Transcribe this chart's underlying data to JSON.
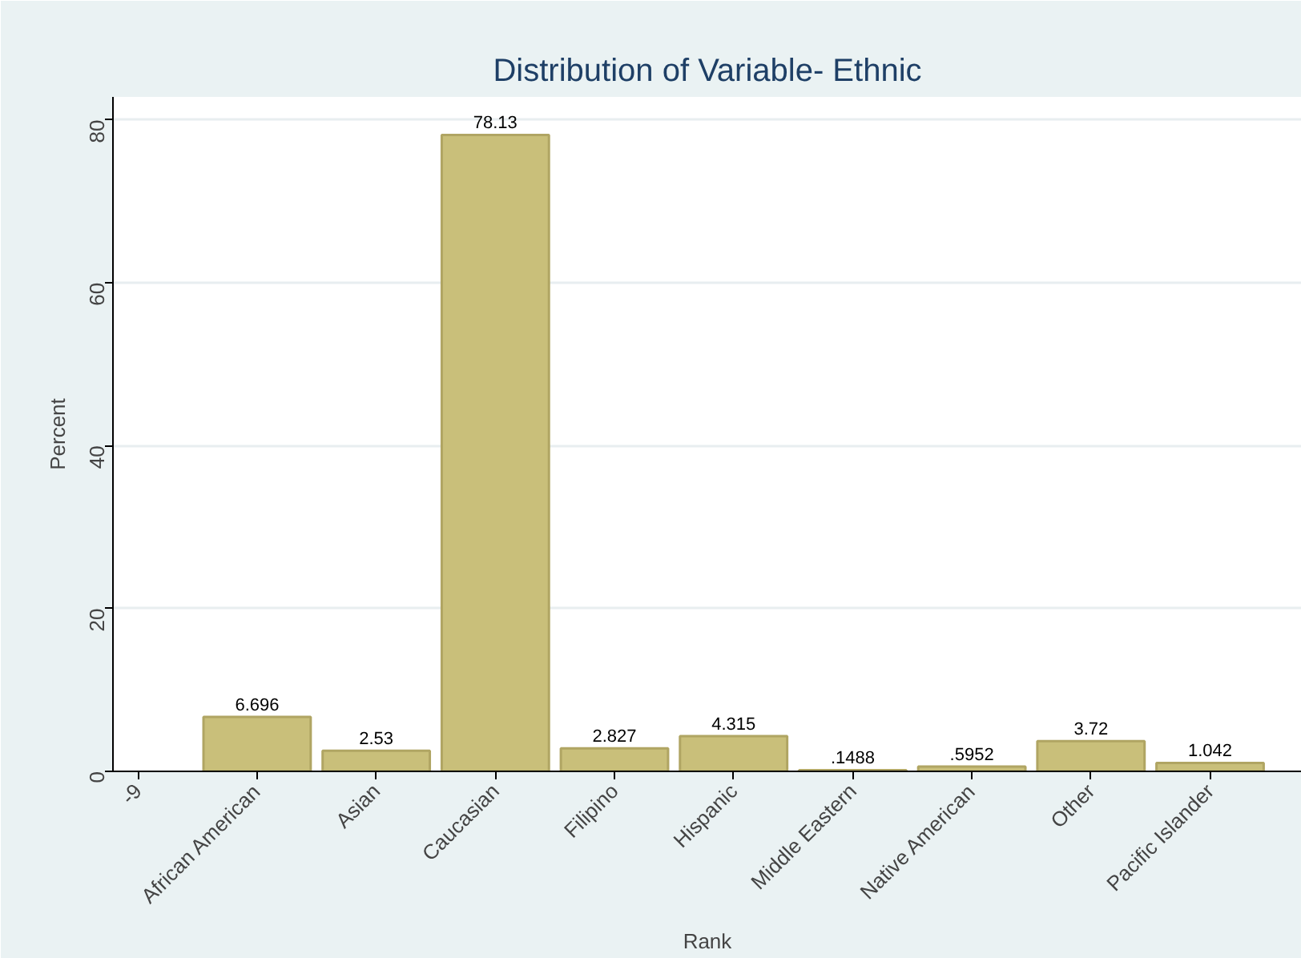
{
  "chart_data": {
    "type": "bar",
    "title": "Distribution of Variable- Ethnic",
    "xlabel": "Rank",
    "ylabel": "Percent",
    "categories": [
      "-9",
      "African American",
      "Asian",
      "Caucasian",
      "Filipino",
      "Hispanic",
      "Middle Eastern",
      "Native American",
      "Other",
      "Pacific Islander"
    ],
    "values": [
      null,
      6.696,
      2.53,
      78.13,
      2.827,
      4.315,
      0.1488,
      0.5952,
      3.72,
      1.042
    ],
    "value_labels": [
      null,
      "6.696",
      "2.53",
      "78.13",
      "2.827",
      "4.315",
      ".1488",
      ".5952",
      "3.72",
      "1.042"
    ],
    "color": "#c9bf7a",
    "ylim": [
      0,
      82.8
    ],
    "yticks": [
      0,
      20,
      40,
      60,
      80
    ],
    "grid": "y"
  }
}
